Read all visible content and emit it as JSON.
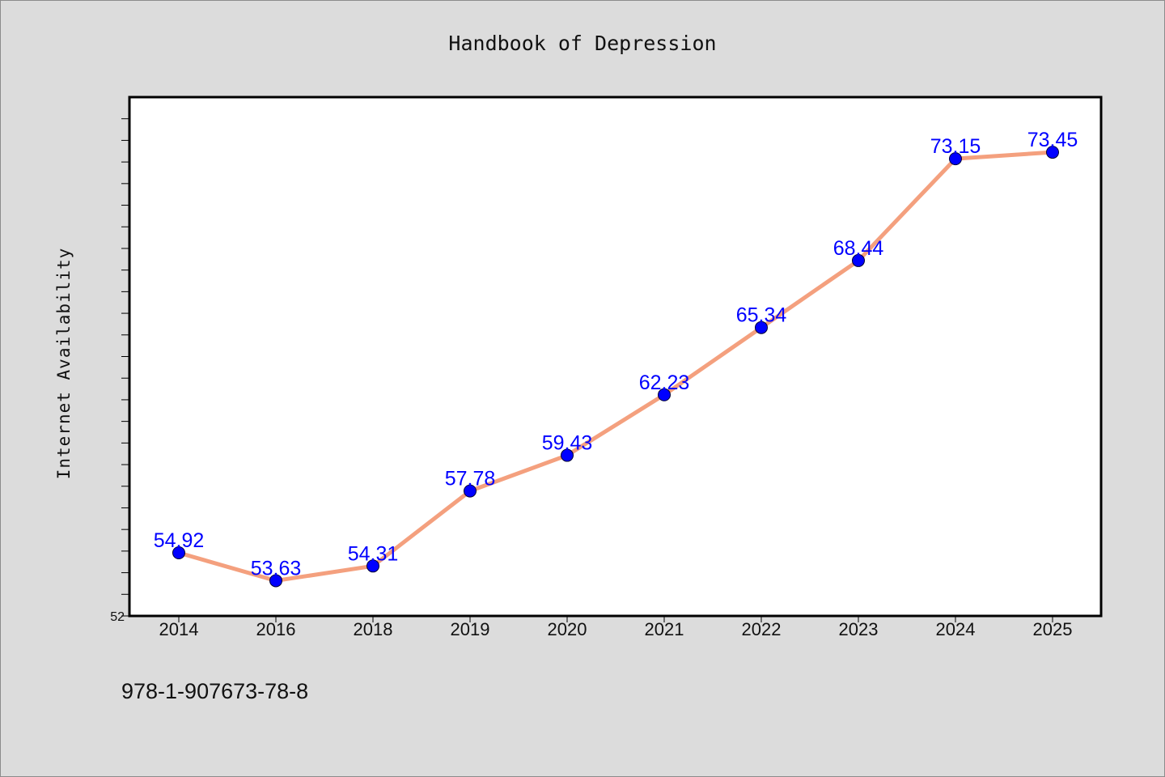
{
  "chart_data": {
    "type": "line",
    "title": "Handbook of Depression",
    "ylabel": "Internet Availability",
    "xlabel": "",
    "categories": [
      "2014",
      "2016",
      "2018",
      "2019",
      "2020",
      "2021",
      "2022",
      "2023",
      "2024",
      "2025"
    ],
    "series": [
      {
        "values": [
          54.92,
          53.63,
          54.31,
          57.78,
          59.43,
          62.23,
          65.34,
          68.44,
          73.15,
          73.45
        ],
        "labels": [
          "54.92",
          "53.63",
          "54.31",
          "57.78",
          "59.43",
          "62.23",
          "65.34",
          "68.44",
          "73.15",
          "73.45"
        ]
      }
    ],
    "ylim": [
      52,
      76
    ],
    "ytick_labels": [
      "52"
    ],
    "grid": false,
    "colors": {
      "line": "#f4a07e",
      "marker": "#0000ff",
      "data_label": "#0000ff",
      "background": "#dcdcdc",
      "plot_background": "#ffffff"
    }
  },
  "footer": {
    "isbn": "978-1-907673-78-8"
  }
}
